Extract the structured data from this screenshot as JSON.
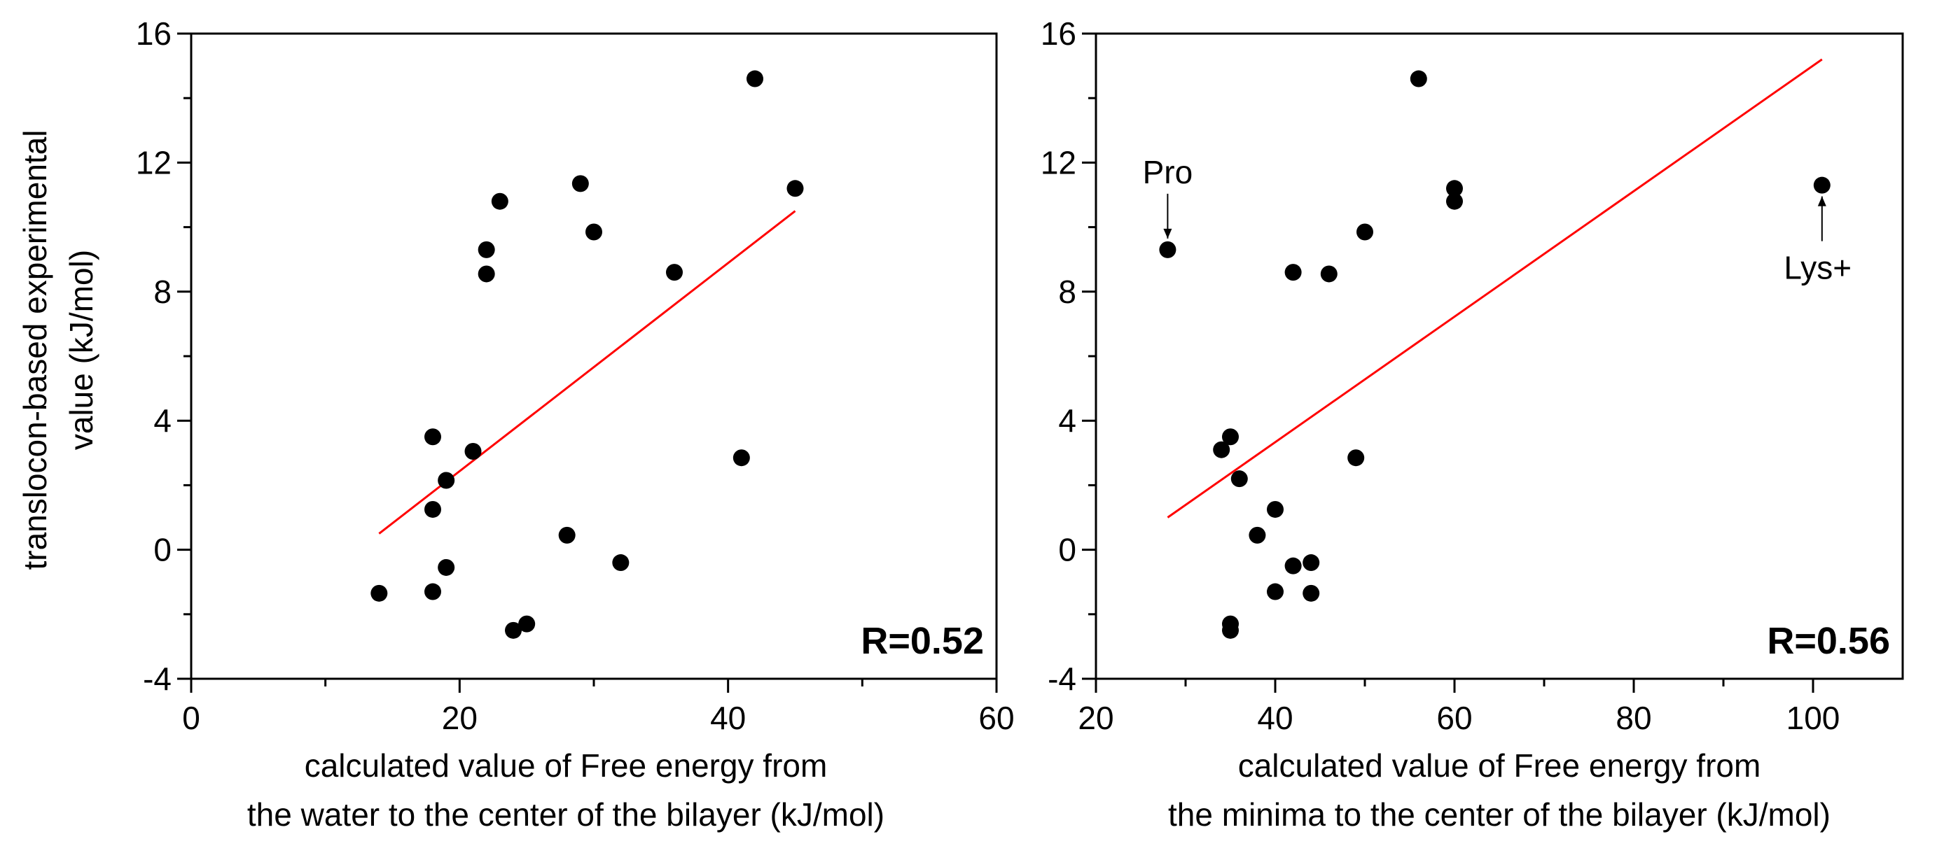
{
  "y_axis_title": [
    "translocon-based experimental",
    "value  (kJ/mol)"
  ],
  "colors": {
    "point": "#000000",
    "fit_line": "#ff0000",
    "axis": "#000000"
  },
  "chart_data": [
    {
      "type": "scatter",
      "xlim": [
        0,
        60
      ],
      "ylim": [
        -4,
        16
      ],
      "xticks": [
        0,
        20,
        40,
        60
      ],
      "yticks": [
        -4,
        0,
        4,
        8,
        12,
        16
      ],
      "x_tick_labels": [
        "0",
        "20",
        "40",
        "60"
      ],
      "y_tick_labels": [
        "-4",
        "0",
        "4",
        "8",
        "12",
        "16"
      ],
      "xlabel": [
        "calculated value of Free energy from",
        "the water to the center of the bilayer  (kJ/mol)"
      ],
      "r_label": "R=0.52",
      "series": [
        {
          "name": "data",
          "x": [
            14,
            18,
            18,
            18,
            19,
            19,
            21,
            22,
            22,
            23,
            24,
            25,
            28,
            29,
            30,
            32,
            36,
            41,
            42,
            45
          ],
          "y": [
            -1.35,
            -1.3,
            1.25,
            3.5,
            2.15,
            -0.55,
            3.05,
            9.3,
            8.55,
            10.8,
            -2.5,
            -2.3,
            0.45,
            11.35,
            9.85,
            -0.4,
            8.6,
            2.85,
            14.6,
            11.2
          ]
        }
      ],
      "fit_line": {
        "x": [
          14,
          45
        ],
        "y": [
          0.5,
          10.5
        ]
      },
      "annotations": []
    },
    {
      "type": "scatter",
      "xlim": [
        20,
        110
      ],
      "ylim": [
        -4,
        16
      ],
      "xticks": [
        20,
        40,
        60,
        80,
        100
      ],
      "yticks": [
        -4,
        0,
        4,
        8,
        12,
        16
      ],
      "x_tick_labels": [
        "20",
        "40",
        "60",
        "80",
        "100"
      ],
      "y_tick_labels": [
        "-4",
        "0",
        "4",
        "8",
        "12",
        "16"
      ],
      "xlabel": [
        "calculated value of Free energy from",
        "the minima to the center of the bilayer  (kJ/mol)"
      ],
      "r_label": "R=0.56",
      "series": [
        {
          "name": "data",
          "x": [
            28,
            34,
            35,
            35,
            35,
            36,
            38,
            40,
            40,
            42,
            42,
            44,
            44,
            46,
            49,
            50,
            56,
            60,
            60,
            101
          ],
          "y": [
            9.3,
            3.1,
            3.5,
            -2.3,
            -2.5,
            2.2,
            0.45,
            1.25,
            -1.3,
            -0.5,
            8.6,
            -0.4,
            -1.35,
            8.55,
            2.85,
            9.85,
            14.6,
            11.2,
            10.8,
            11.3
          ]
        }
      ],
      "fit_line": {
        "x": [
          28,
          101
        ],
        "y": [
          1.0,
          15.2
        ]
      },
      "annotations": [
        {
          "text": "Pro",
          "point_x": 28,
          "point_y": 9.3,
          "label_above": true
        },
        {
          "text": "Lys+",
          "point_x": 101,
          "point_y": 11.3,
          "label_above": false
        }
      ]
    }
  ]
}
